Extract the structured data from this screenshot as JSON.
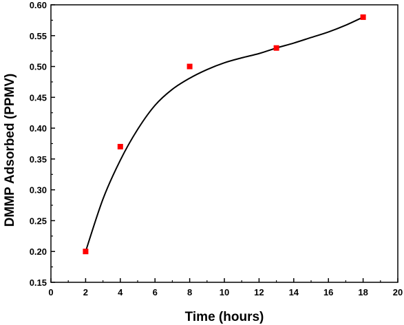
{
  "chart_data": {
    "type": "scatter",
    "title": "",
    "xlabel": "Time (hours)",
    "ylabel": "DMMP Adsorbed (PPMV)",
    "xlim": [
      0,
      20
    ],
    "ylim": [
      0.15,
      0.6
    ],
    "x_ticks": [
      0,
      2,
      4,
      6,
      8,
      10,
      12,
      14,
      16,
      18,
      20
    ],
    "y_ticks": [
      "0.15",
      "0.20",
      "0.25",
      "0.30",
      "0.35",
      "0.40",
      "0.45",
      "0.50",
      "0.55",
      "0.60"
    ],
    "grid": false,
    "legend": "none",
    "series": [
      {
        "marker": "square",
        "color": "#ff0000",
        "x": [
          2,
          4,
          8,
          13,
          18
        ],
        "y": [
          0.2,
          0.37,
          0.5,
          0.53,
          0.58
        ]
      }
    ],
    "fit_curve": {
      "color": "#000000",
      "x": [
        2,
        3,
        4,
        5,
        6,
        7,
        8,
        9,
        10,
        11,
        12,
        13,
        14,
        15,
        16,
        17,
        18
      ],
      "y": [
        0.2,
        0.285,
        0.348,
        0.398,
        0.437,
        0.463,
        0.481,
        0.495,
        0.506,
        0.514,
        0.521,
        0.53,
        0.538,
        0.547,
        0.556,
        0.567,
        0.58
      ]
    }
  }
}
